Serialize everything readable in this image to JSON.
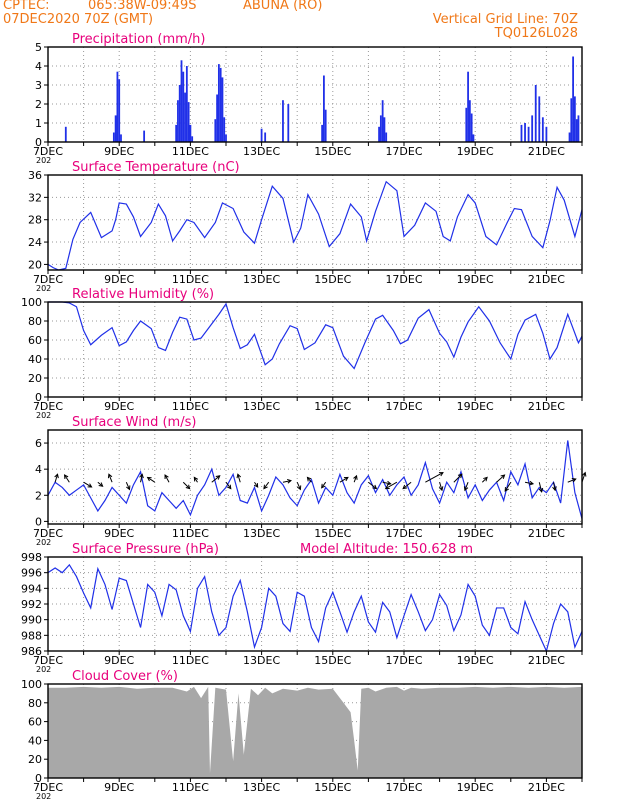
{
  "header": {
    "source": "CPTEC:",
    "coords": "065:38W-09:49S",
    "location": "ABUNA (RO)",
    "run": "07DEC2020 70Z (GMT)",
    "grid_line": "Vertical Grid Line: 70Z",
    "code": "TQ0126L028"
  },
  "x_axis": {
    "start_day": 7,
    "end_day": 22,
    "tick_labels": [
      "7DEC",
      "9DEC",
      "11DEC",
      "13DEC",
      "15DEC",
      "17DEC",
      "19DEC",
      "21DEC"
    ],
    "tick_days": [
      7,
      9,
      11,
      13,
      15,
      17,
      19,
      21
    ],
    "year_stub": "202"
  },
  "colors": {
    "title": "#e8007c",
    "header": "#f07818",
    "series": "#2030e8",
    "cloud": "#a8a8a8",
    "wind_arrow": "#000000"
  },
  "chart_data": [
    {
      "id": "precip",
      "type": "bar",
      "title": "Precipitation (mm/h)",
      "ylim": [
        0,
        5
      ],
      "yticks": [
        0,
        1,
        2,
        3,
        4,
        5
      ],
      "x": [
        7.5,
        8.85,
        8.9,
        8.95,
        9.0,
        9.05,
        9.7,
        10.6,
        10.65,
        10.7,
        10.75,
        10.8,
        10.85,
        10.9,
        10.95,
        11.0,
        11.05,
        11.7,
        11.75,
        11.8,
        11.85,
        11.9,
        11.95,
        12.0,
        13.0,
        13.1,
        13.6,
        13.75,
        14.7,
        14.75,
        14.8,
        16.3,
        16.35,
        16.4,
        16.45,
        16.5,
        18.75,
        18.8,
        18.85,
        18.9,
        18.95,
        20.3,
        20.4,
        20.5,
        20.6,
        20.7,
        20.8,
        20.9,
        21.0,
        21.65,
        21.7,
        21.75,
        21.8,
        21.85,
        21.9
      ],
      "values": [
        0.8,
        0.5,
        1.4,
        3.7,
        3.3,
        0.4,
        0.6,
        0.9,
        2.2,
        3.0,
        4.3,
        3.7,
        2.6,
        4.0,
        2.1,
        0.9,
        0.3,
        1.2,
        2.5,
        4.1,
        3.9,
        3.4,
        1.3,
        0.4,
        0.7,
        0.5,
        2.2,
        2.0,
        0.9,
        3.5,
        1.7,
        0.8,
        1.4,
        2.2,
        1.3,
        0.5,
        1.8,
        3.7,
        2.2,
        1.5,
        0.4,
        0.9,
        1.0,
        0.8,
        1.4,
        3.0,
        2.4,
        1.3,
        0.8,
        0.5,
        2.3,
        4.5,
        2.4,
        1.2,
        1.4
      ]
    },
    {
      "id": "temp",
      "type": "line",
      "title": "Surface Temperature (nC)",
      "ylim": [
        19,
        36
      ],
      "yticks": [
        20,
        24,
        28,
        32,
        36
      ],
      "x": [
        7.0,
        7.15,
        7.3,
        7.5,
        7.7,
        7.9,
        8.2,
        8.5,
        8.8,
        8.9,
        9.0,
        9.2,
        9.4,
        9.6,
        9.9,
        10.1,
        10.3,
        10.5,
        10.7,
        10.9,
        11.1,
        11.4,
        11.7,
        11.9,
        12.2,
        12.5,
        12.8,
        13.0,
        13.3,
        13.6,
        13.9,
        14.1,
        14.3,
        14.6,
        14.9,
        15.2,
        15.5,
        15.8,
        15.95,
        16.2,
        16.5,
        16.8,
        17.0,
        17.3,
        17.6,
        17.9,
        18.1,
        18.3,
        18.5,
        18.8,
        19.0,
        19.3,
        19.6,
        19.9,
        20.1,
        20.3,
        20.6,
        20.9,
        21.1,
        21.3,
        21.5,
        21.8,
        22.0
      ],
      "values": [
        20.0,
        19.4,
        19.0,
        19.3,
        24.5,
        27.5,
        29.3,
        24.8,
        26.0,
        28.0,
        31.0,
        30.8,
        28.5,
        25.0,
        27.5,
        30.8,
        28.7,
        24.2,
        26.0,
        28.0,
        27.5,
        24.8,
        27.5,
        31.0,
        30.0,
        25.8,
        23.8,
        28.0,
        34.0,
        31.8,
        24.0,
        26.5,
        32.5,
        29.0,
        23.2,
        25.5,
        30.8,
        28.5,
        24.2,
        29.5,
        34.8,
        33.2,
        25.0,
        27.0,
        31.0,
        29.5,
        25.0,
        24.2,
        28.5,
        32.5,
        31.0,
        25.0,
        23.5,
        27.5,
        30.0,
        29.8,
        25.0,
        23.0,
        27.8,
        33.8,
        31.5,
        25.0,
        29.8
      ]
    },
    {
      "id": "rh",
      "type": "line",
      "title": "Relative Humidity (%)",
      "ylim": [
        0,
        100
      ],
      "yticks": [
        0,
        20,
        40,
        60,
        80,
        100
      ],
      "x": [
        7.0,
        7.2,
        7.4,
        7.6,
        7.8,
        8.0,
        8.2,
        8.5,
        8.8,
        9.0,
        9.2,
        9.4,
        9.6,
        9.9,
        10.1,
        10.3,
        10.5,
        10.7,
        10.9,
        11.1,
        11.3,
        11.5,
        11.8,
        12.0,
        12.2,
        12.4,
        12.6,
        12.8,
        13.1,
        13.3,
        13.5,
        13.8,
        14.0,
        14.2,
        14.5,
        14.8,
        15.0,
        15.3,
        15.6,
        15.9,
        16.2,
        16.4,
        16.7,
        16.9,
        17.1,
        17.4,
        17.7,
        18.0,
        18.2,
        18.4,
        18.6,
        18.8,
        19.1,
        19.4,
        19.7,
        20.0,
        20.2,
        20.4,
        20.7,
        20.9,
        21.1,
        21.3,
        21.6,
        21.9,
        22.0
      ],
      "values": [
        100,
        100,
        100,
        99,
        95,
        70,
        55,
        65,
        73,
        54,
        58,
        70,
        80,
        72,
        52,
        49,
        68,
        84,
        82,
        60,
        62,
        72,
        87,
        98,
        73,
        51,
        55,
        66,
        34,
        40,
        56,
        75,
        72,
        50,
        57,
        76,
        73,
        43,
        30,
        57,
        82,
        86,
        70,
        56,
        60,
        83,
        92,
        67,
        58,
        42,
        63,
        79,
        95,
        80,
        57,
        40,
        66,
        81,
        87,
        67,
        40,
        52,
        87,
        57,
        64
      ]
    },
    {
      "id": "wind",
      "type": "line",
      "title": "Surface Wind (m/s)",
      "ylim": [
        -0.2,
        7
      ],
      "yticks": [
        0,
        2,
        4,
        6
      ],
      "x": [
        7.0,
        7.2,
        7.4,
        7.6,
        7.8,
        8.0,
        8.2,
        8.4,
        8.6,
        8.8,
        9.0,
        9.2,
        9.4,
        9.6,
        9.8,
        10.0,
        10.2,
        10.4,
        10.6,
        10.8,
        11.0,
        11.2,
        11.4,
        11.6,
        11.8,
        12.0,
        12.2,
        12.4,
        12.6,
        12.8,
        13.0,
        13.2,
        13.4,
        13.6,
        13.8,
        14.0,
        14.2,
        14.4,
        14.6,
        14.8,
        15.0,
        15.2,
        15.4,
        15.6,
        15.8,
        16.0,
        16.2,
        16.4,
        16.6,
        16.8,
        17.0,
        17.2,
        17.4,
        17.6,
        17.8,
        18.0,
        18.2,
        18.4,
        18.6,
        18.8,
        19.0,
        19.2,
        19.4,
        19.6,
        19.8,
        20.0,
        20.2,
        20.4,
        20.6,
        20.8,
        21.0,
        21.2,
        21.4,
        21.6,
        21.8,
        22.0
      ],
      "values": [
        2.0,
        3.0,
        2.6,
        2.0,
        2.4,
        2.8,
        1.8,
        0.8,
        1.6,
        2.6,
        2.0,
        1.4,
        2.8,
        3.8,
        1.2,
        0.8,
        2.2,
        1.6,
        1.0,
        1.6,
        0.5,
        2.0,
        2.8,
        4.0,
        2.0,
        2.6,
        3.6,
        1.6,
        1.4,
        2.6,
        0.8,
        2.0,
        3.4,
        2.8,
        1.8,
        1.2,
        2.4,
        3.2,
        1.4,
        2.6,
        2.0,
        3.6,
        2.2,
        1.4,
        2.8,
        3.5,
        2.2,
        3.2,
        2.0,
        2.8,
        3.4,
        2.0,
        2.8,
        4.5,
        2.5,
        1.4,
        3.0,
        2.2,
        3.8,
        1.8,
        2.8,
        1.6,
        2.4,
        3.0,
        1.6,
        3.8,
        2.8,
        4.4,
        1.8,
        2.6,
        2.2,
        3.0,
        1.4,
        6.2,
        2.2,
        0.2
      ],
      "arrows": {
        "x": [
          7.2,
          7.6,
          8.0,
          8.4,
          8.8,
          9.2,
          9.6,
          10.0,
          10.4,
          10.8,
          11.2,
          11.6,
          12.0,
          12.4,
          12.8,
          13.2,
          13.6,
          14.0,
          14.4,
          14.8,
          15.2,
          15.6,
          16.0,
          16.4,
          16.8,
          17.2,
          17.6,
          18.0,
          18.4,
          18.8,
          19.2,
          19.6,
          20.0,
          20.4,
          20.8,
          21.2,
          21.6,
          22.0
        ],
        "u": [
          0.3,
          -0.6,
          1.0,
          0.6,
          -0.4,
          0.4,
          0.2,
          -0.9,
          -0.5,
          0.8,
          -0.4,
          1.0,
          0.6,
          -0.3,
          0.4,
          -0.6,
          1.0,
          0.4,
          -0.5,
          -0.5,
          1.0,
          0.3,
          1.0,
          1.0,
          -1.4,
          -1.0,
          2.2,
          0.3,
          1.0,
          -0.4,
          0.6,
          1.0,
          -0.7,
          1.0,
          0.3,
          0.2,
          1.0,
          0.4
        ],
        "v": [
          1.0,
          0.9,
          -0.6,
          -0.5,
          1.0,
          -0.9,
          1.0,
          0.6,
          0.9,
          -0.8,
          0.6,
          0.8,
          -0.8,
          1.0,
          -0.6,
          -0.8,
          0.2,
          -0.9,
          0.6,
          -0.7,
          0.6,
          0.8,
          -0.8,
          -0.2,
          -0.8,
          -0.8,
          1.2,
          -1.0,
          1.0,
          -1.0,
          0.6,
          0.9,
          -1.1,
          -0.2,
          -1.2,
          -1.0,
          0.4,
          1.2
        ]
      }
    },
    {
      "id": "pressure",
      "type": "line",
      "title": "Surface Pressure (hPa)",
      "extra_label": "Model Altitude: 150.628 m",
      "ylim": [
        986,
        998
      ],
      "yticks": [
        986,
        988,
        990,
        992,
        994,
        996,
        998
      ],
      "x": [
        7.0,
        7.2,
        7.4,
        7.6,
        7.8,
        8.0,
        8.2,
        8.4,
        8.6,
        8.8,
        9.0,
        9.2,
        9.4,
        9.6,
        9.8,
        10.0,
        10.2,
        10.4,
        10.6,
        10.8,
        11.0,
        11.2,
        11.4,
        11.6,
        11.8,
        12.0,
        12.2,
        12.4,
        12.6,
        12.8,
        13.0,
        13.2,
        13.4,
        13.6,
        13.8,
        14.0,
        14.2,
        14.4,
        14.6,
        14.8,
        15.0,
        15.2,
        15.4,
        15.6,
        15.8,
        16.0,
        16.2,
        16.4,
        16.6,
        16.8,
        17.0,
        17.2,
        17.4,
        17.6,
        17.8,
        18.0,
        18.2,
        18.4,
        18.6,
        18.8,
        19.0,
        19.2,
        19.4,
        19.6,
        19.8,
        20.0,
        20.2,
        20.4,
        20.6,
        20.8,
        21.0,
        21.2,
        21.4,
        21.6,
        21.8,
        22.0
      ],
      "values": [
        996,
        996.6,
        996,
        997,
        995.5,
        993.4,
        991.5,
        996.5,
        994.5,
        991.3,
        995.3,
        995,
        992,
        989,
        994.5,
        993.5,
        990.5,
        994.5,
        993.8,
        990.5,
        988.5,
        994,
        995.5,
        991,
        988,
        989,
        993,
        995,
        991,
        986.5,
        989,
        994,
        993,
        989.5,
        988.5,
        993.5,
        993,
        989,
        987.2,
        991.5,
        993.5,
        991,
        988.4,
        991,
        993,
        989.7,
        988.4,
        992.2,
        991,
        987.7,
        990.5,
        993.2,
        991,
        988.6,
        990,
        993.2,
        991.8,
        988.6,
        990.6,
        994.5,
        993,
        989.3,
        988,
        991.5,
        991.5,
        989,
        988.2,
        992.3,
        990,
        988,
        986,
        989.5,
        992,
        991,
        986.5,
        988.5
      ]
    },
    {
      "id": "cloud",
      "type": "area",
      "title": "Cloud Cover (%)",
      "ylim": [
        0,
        100
      ],
      "yticks": [
        0,
        20,
        40,
        60,
        80,
        100
      ],
      "x": [
        7.0,
        7.5,
        8.0,
        8.5,
        9.0,
        9.5,
        10.0,
        10.5,
        10.9,
        11.1,
        11.3,
        11.5,
        11.55,
        11.7,
        12.0,
        12.2,
        12.35,
        12.5,
        12.7,
        12.9,
        13.1,
        13.3,
        13.6,
        14.0,
        14.3,
        14.6,
        15.0,
        15.3,
        15.5,
        15.6,
        15.7,
        15.8,
        16.0,
        16.2,
        16.5,
        16.8,
        17.0,
        17.2,
        17.5,
        18.0,
        18.5,
        19.0,
        19.5,
        20.0,
        20.5,
        21.0,
        21.5,
        22.0
      ],
      "values": [
        96,
        96,
        97,
        96,
        97,
        95,
        96,
        96,
        92,
        97,
        85,
        97,
        5,
        96,
        94,
        18,
        90,
        25,
        95,
        88,
        96,
        90,
        95,
        93,
        96,
        94,
        95,
        80,
        70,
        40,
        8,
        95,
        96,
        92,
        96,
        97,
        93,
        96,
        95,
        96,
        96,
        97,
        96,
        97,
        96,
        97,
        96,
        97
      ]
    }
  ]
}
